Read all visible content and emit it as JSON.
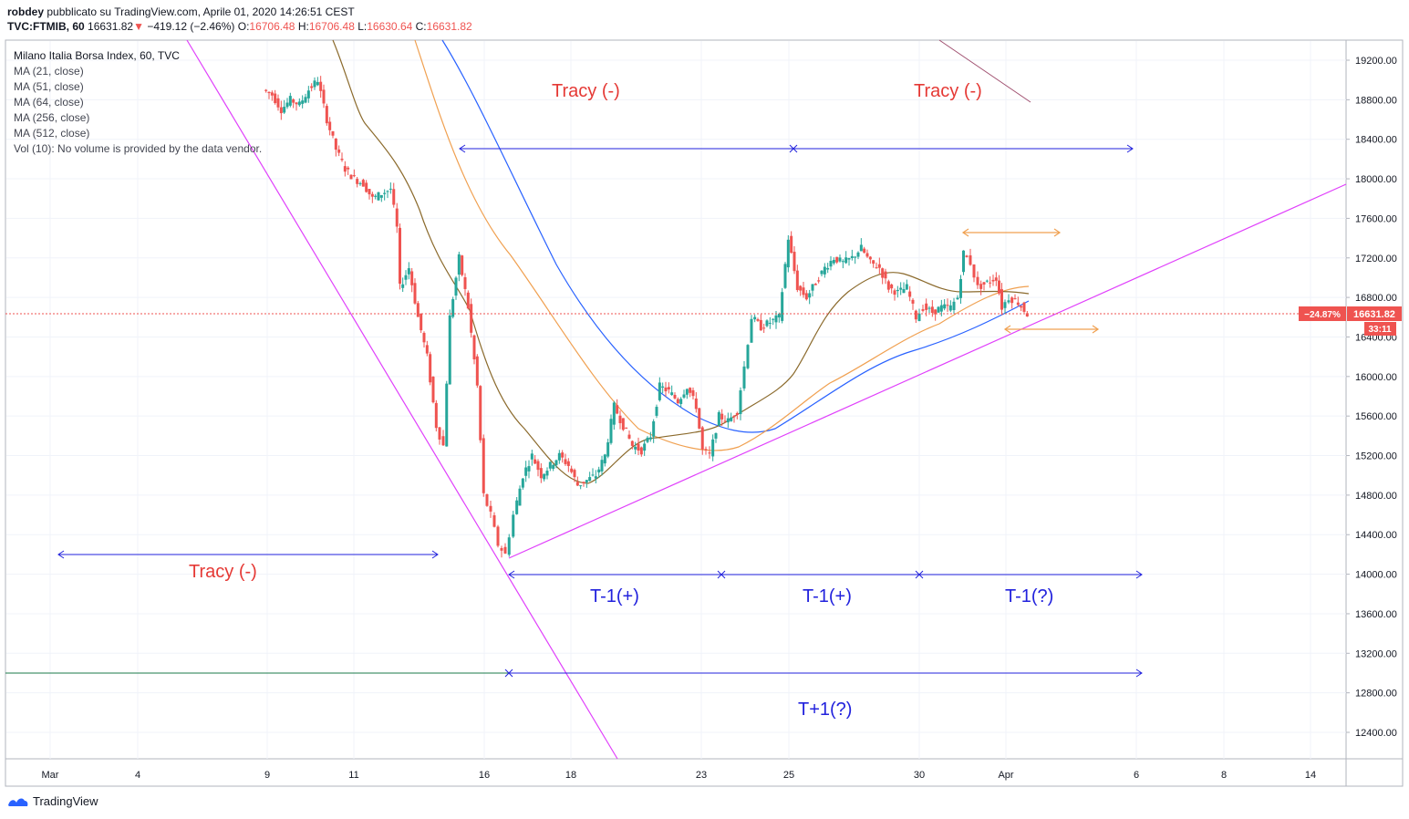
{
  "header": {
    "author": "robdey",
    "published_text": "pubblicato su TradingView.com, Aprile 01, 2020 14:26:51 CEST",
    "symbol": "TVC:FTMIB, 60",
    "last": "16631.82",
    "arrow": "▼",
    "change": "−419.12 (−2.46%)",
    "o_label": "O:",
    "o_value": "16706.48",
    "h_label": "H:",
    "h_value": "16706.48",
    "l_label": "L:",
    "l_value": "16630.64",
    "c_label": "C:",
    "c_value": "16631.82"
  },
  "legend": {
    "title": "Milano Italia Borsa Index, 60, TVC",
    "ma21": "MA (21, close)",
    "ma51": "MA (51, close)",
    "ma64": "MA (64, close)",
    "ma256": "MA (256, close)",
    "ma512": "MA (512, close)",
    "vol": "Vol (10): No volume is provided by the data vendor."
  },
  "price_tag": {
    "pct": "−24.87%",
    "price": "16631.82",
    "countdown": "33:11"
  },
  "footer": {
    "brand": "TradingView"
  },
  "colors": {
    "up": "#26a69a",
    "down": "#ef5350",
    "ma_brown": "#8b6a2c",
    "ma_orange": "#f0a050",
    "ma_blue": "#2962ff",
    "magenta": "#e040fb",
    "annot_blue": "#2222dd",
    "annot_red": "#e53935",
    "grid": "#f0f3fa"
  },
  "annotations": {
    "tracy1": "Tracy (-)",
    "tracy2": "Tracy (-)",
    "tracy3": "Tracy (-)",
    "t1a": "T-1(+)",
    "t1b": "T-1(+)",
    "t1c": "T-1(?)",
    "t_plus": "T+1(?)"
  },
  "chart_data": {
    "type": "candlestick",
    "title": "Milano Italia Borsa Index, 60, TVC",
    "y_ticks": [
      12400,
      12800,
      13200,
      13600,
      14000,
      14400,
      14800,
      15200,
      15600,
      16000,
      16400,
      16800,
      17200,
      17600,
      18000,
      18400,
      18800,
      19200
    ],
    "y_tick_labels": [
      "12400.00",
      "12800.00",
      "13200.00",
      "13600.00",
      "14000.00",
      "14400.00",
      "14800.00",
      "15200.00",
      "15600.00",
      "16000.00",
      "16400.00",
      "16800.00",
      "17200.00",
      "17600.00",
      "18000.00",
      "18400.00",
      "18800.00",
      "19200.00"
    ],
    "x_tick_labels": [
      "Mar",
      "4",
      "9",
      "11",
      "16",
      "18",
      "23",
      "25",
      "30",
      "Apr",
      "6",
      "8",
      "14"
    ],
    "ylim": [
      12100,
      19450
    ],
    "last_price": 16631.82,
    "close_path": [
      [
        290,
        18900
      ],
      [
        300,
        18850
      ],
      [
        310,
        18700
      ],
      [
        320,
        18800
      ],
      [
        330,
        18750
      ],
      [
        340,
        18900
      ],
      [
        350,
        19000
      ],
      [
        360,
        18600
      ],
      [
        370,
        18300
      ],
      [
        380,
        18100
      ],
      [
        390,
        18000
      ],
      [
        400,
        17950
      ],
      [
        410,
        17800
      ],
      [
        420,
        17850
      ],
      [
        430,
        17900
      ],
      [
        437,
        17500
      ],
      [
        440,
        16900
      ],
      [
        450,
        17100
      ],
      [
        460,
        16600
      ],
      [
        470,
        16200
      ],
      [
        480,
        15500
      ],
      [
        488,
        15300
      ],
      [
        495,
        16600
      ],
      [
        505,
        17200
      ],
      [
        515,
        16700
      ],
      [
        525,
        15900
      ],
      [
        532,
        14800
      ],
      [
        540,
        14600
      ],
      [
        548,
        14300
      ],
      [
        556,
        14200
      ],
      [
        565,
        14600
      ],
      [
        575,
        15000
      ],
      [
        585,
        15200
      ],
      [
        595,
        15000
      ],
      [
        605,
        15100
      ],
      [
        615,
        15200
      ],
      [
        625,
        15100
      ],
      [
        635,
        14900
      ],
      [
        645,
        14950
      ],
      [
        655,
        15000
      ],
      [
        665,
        15200
      ],
      [
        675,
        15700
      ],
      [
        685,
        15500
      ],
      [
        695,
        15300
      ],
      [
        705,
        15250
      ],
      [
        715,
        15400
      ],
      [
        725,
        15900
      ],
      [
        735,
        15850
      ],
      [
        745,
        15750
      ],
      [
        755,
        15900
      ],
      [
        765,
        15700
      ],
      [
        772,
        15250
      ],
      [
        780,
        15200
      ],
      [
        790,
        15600
      ],
      [
        800,
        15550
      ],
      [
        810,
        15650
      ],
      [
        818,
        16100
      ],
      [
        826,
        16600
      ],
      [
        836,
        16500
      ],
      [
        846,
        16550
      ],
      [
        856,
        16600
      ],
      [
        866,
        17400
      ],
      [
        876,
        16900
      ],
      [
        886,
        16800
      ],
      [
        896,
        16950
      ],
      [
        906,
        17100
      ],
      [
        916,
        17200
      ],
      [
        926,
        17150
      ],
      [
        936,
        17200
      ],
      [
        946,
        17300
      ],
      [
        956,
        17150
      ],
      [
        966,
        17100
      ],
      [
        976,
        16900
      ],
      [
        986,
        16850
      ],
      [
        996,
        16900
      ],
      [
        1006,
        16600
      ],
      [
        1014,
        16700
      ],
      [
        1024,
        16650
      ],
      [
        1034,
        16700
      ],
      [
        1044,
        16700
      ],
      [
        1052,
        16800
      ],
      [
        1058,
        17250
      ],
      [
        1066,
        17150
      ],
      [
        1074,
        16900
      ],
      [
        1084,
        16950
      ],
      [
        1094,
        17000
      ],
      [
        1100,
        16700
      ],
      [
        1108,
        16800
      ],
      [
        1118,
        16750
      ],
      [
        1128,
        16632
      ]
    ]
  }
}
